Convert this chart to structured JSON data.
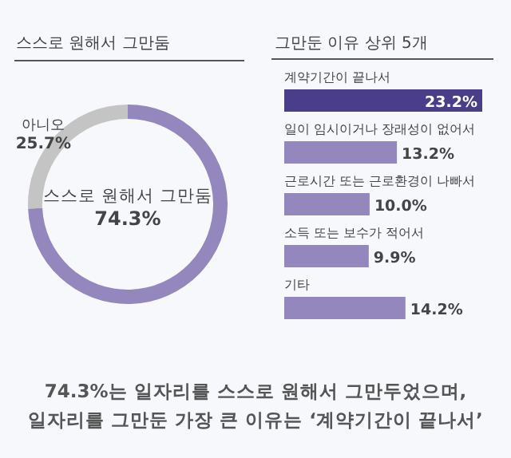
{
  "chart_data": [
    {
      "type": "donut",
      "title": "스스로 원해서 그만둠",
      "categories": [
        "스스로 원해서 그만둠",
        "아니오"
      ],
      "values": [
        74.3,
        25.7
      ],
      "colors": [
        "#9487bd",
        "#c4c4c4"
      ],
      "value_labels": [
        "74.3%",
        "25.7%"
      ],
      "annotations": [
        "74.3%는 일자리를 스스로 원해서 그만두었으며,",
        "일자리를 그만둔 가장 큰 이유는 ‘계약기간이 끝나서’"
      ]
    },
    {
      "type": "bar",
      "orientation": "horizontal",
      "title": "그만둔 이유 상위 5개",
      "categories": [
        "계약기간이 끝나서",
        "일이 임시이거나 장래성이 없어서",
        "근로시간 또는 근로환경이 나빠서",
        "소득 또는 보수가 적어서",
        "기타"
      ],
      "values": [
        23.2,
        13.2,
        10.0,
        9.9,
        14.2
      ],
      "colors": [
        "#4a3d8a",
        "#9487bd",
        "#9487bd",
        "#9487bd",
        "#9487bd"
      ],
      "value_labels": [
        "23.2%",
        "13.2%",
        "10.0%",
        "9.9%",
        "14.2%"
      ]
    }
  ]
}
